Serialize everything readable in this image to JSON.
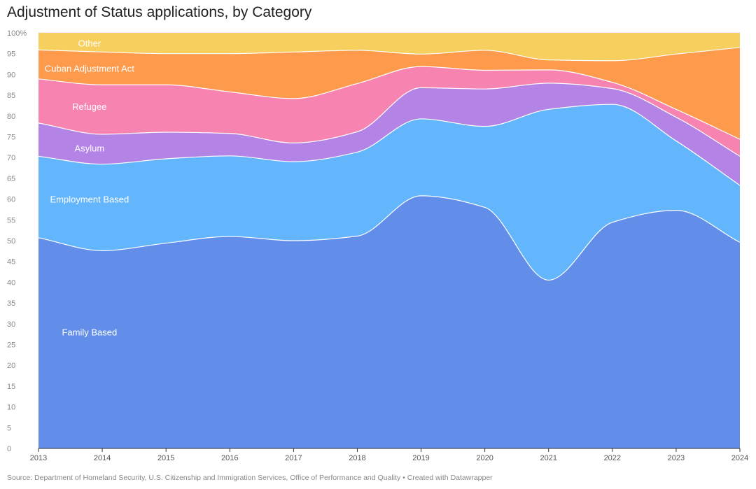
{
  "chart_data": {
    "type": "area",
    "stacked": true,
    "title": "Adjustment of Status applications, by Category",
    "source": "Source: Department of Homeland Security, U.S. Citizenship and Immigration Services, Office of Performance and Quality • Created with Datawrapper",
    "x": [
      2013,
      2014,
      2015,
      2016,
      2017,
      2018,
      2019,
      2020,
      2021,
      2022,
      2023,
      2024
    ],
    "ylim": [
      0,
      100
    ],
    "yticks": [
      0,
      5,
      10,
      15,
      20,
      25,
      30,
      35,
      40,
      45,
      50,
      55,
      60,
      65,
      70,
      75,
      80,
      85,
      90,
      95,
      100
    ],
    "ytick_labels": [
      "0",
      "5",
      "10",
      "15",
      "20",
      "25",
      "30",
      "35",
      "40",
      "45",
      "50",
      "55",
      "60",
      "65",
      "70",
      "75",
      "80",
      "85",
      "90",
      "95",
      "100%"
    ],
    "grid": true,
    "series": [
      {
        "name": "Family Based",
        "color": "#628eea",
        "label_x": 2013.8,
        "label_y": 28,
        "values": [
          50.7,
          47.6,
          49.4,
          51.0,
          50.0,
          51.1,
          60.8,
          58.0,
          40.5,
          54.4,
          57.3,
          49.6
        ]
      },
      {
        "name": "Employment Based",
        "color": "#63b5fc",
        "label_x": 2013.8,
        "label_y": 60,
        "values": [
          19.6,
          20.8,
          20.3,
          19.4,
          19.0,
          20.2,
          18.5,
          19.5,
          41.1,
          28.4,
          16.7,
          13.7
        ]
      },
      {
        "name": "Asylum",
        "color": "#b383e6",
        "label_x": 2013.8,
        "label_y": 72.3,
        "values": [
          8.0,
          7.2,
          6.4,
          5.4,
          4.5,
          4.9,
          7.5,
          9.0,
          6.3,
          3.8,
          5.7,
          7.0
        ]
      },
      {
        "name": "Refugee",
        "color": "#f784b0",
        "label_x": 2013.8,
        "label_y": 82.3,
        "values": [
          10.6,
          11.9,
          11.4,
          10.0,
          10.7,
          11.6,
          5.1,
          4.5,
          3.2,
          1.5,
          1.9,
          4.1
        ]
      },
      {
        "name": "Cuban Adjustment Act",
        "color": "#fd9a4c",
        "label_x": 2013.8,
        "label_y": 91.5,
        "values": [
          7.0,
          7.9,
          7.5,
          9.2,
          11.2,
          8.0,
          3.0,
          4.8,
          2.4,
          5.2,
          13.3,
          22.1
        ]
      },
      {
        "name": "Other",
        "color": "#f6cf5f",
        "label_x": 2013.8,
        "label_y": 97.6,
        "values": [
          4.1,
          4.6,
          5.0,
          5.0,
          4.6,
          4.2,
          5.1,
          4.2,
          6.5,
          6.7,
          5.1,
          3.5
        ]
      }
    ]
  }
}
